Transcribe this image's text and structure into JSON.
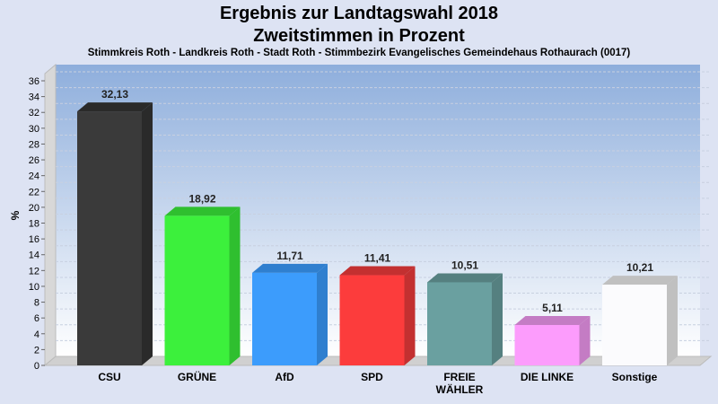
{
  "chart_data": {
    "type": "bar",
    "title": "Ergebnis zur Landtagswahl 2018",
    "subtitle": "Zweitstimmen in Prozent",
    "caption": "Stimmkreis Roth - Landkreis Roth - Stadt Roth - Stimmbezirk Evangelisches Gemeindehaus Rothaurach (0017)",
    "ylabel": "%",
    "xlabel": "",
    "ylim": [
      0,
      36
    ],
    "yticks": [
      0,
      2,
      4,
      6,
      8,
      10,
      12,
      14,
      16,
      18,
      20,
      22,
      24,
      26,
      28,
      30,
      32,
      34,
      36
    ],
    "grid": true,
    "categories": [
      "CSU",
      "GRÜNE",
      "AfD",
      "SPD",
      "FREIE WÄHLER",
      "DIE LINKE",
      "Sonstige"
    ],
    "category_lines": [
      [
        "CSU"
      ],
      [
        "GRÜNE"
      ],
      [
        "AfD"
      ],
      [
        "SPD"
      ],
      [
        "FREIE",
        "WÄHLER"
      ],
      [
        "DIE LINKE"
      ],
      [
        "Sonstige"
      ]
    ],
    "values": [
      32.13,
      18.92,
      11.71,
      11.41,
      10.51,
      5.11,
      10.21
    ],
    "value_labels": [
      "32,13",
      "18,92",
      "11,71",
      "11,41",
      "10,51",
      "5,11",
      "10,21"
    ],
    "colors": [
      "#3a3a3a",
      "#3cf03c",
      "#3c9cfc",
      "#fc3c3c",
      "#6aa0a0",
      "#fc9cfc",
      "#fbfbfd"
    ],
    "side_colors": [
      "#2a2a2a",
      "#2fbf2f",
      "#2f7fcf",
      "#c33030",
      "#558080",
      "#c47cc4",
      "#c0c0c0"
    ]
  }
}
